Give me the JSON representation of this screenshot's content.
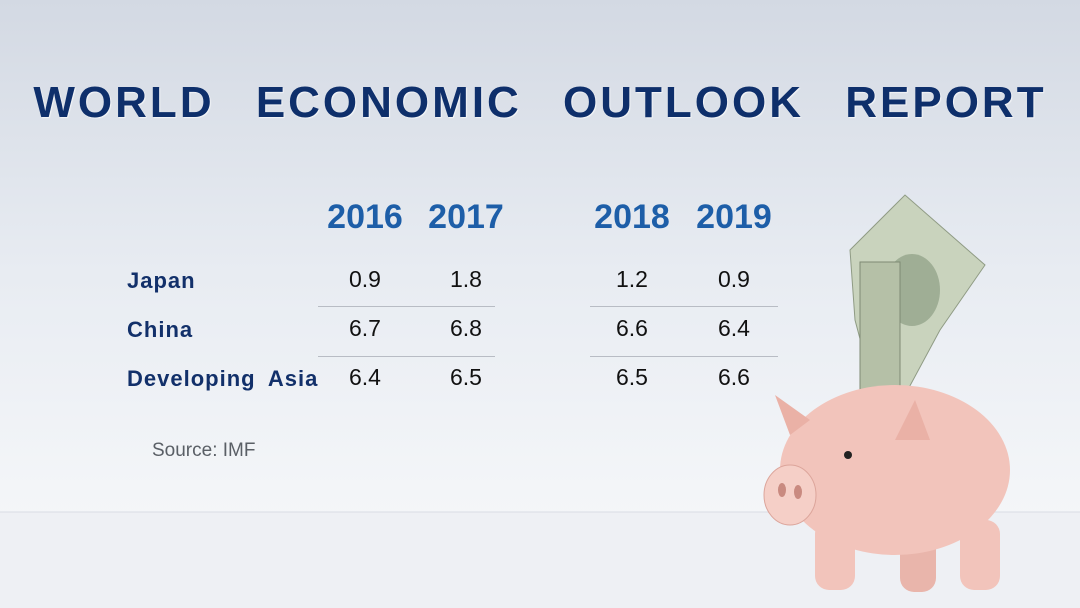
{
  "header": {
    "title": "WORLD ECONOMIC OUTLOOK REPORT"
  },
  "table": {
    "columns": [
      "2016",
      "2017",
      "2018",
      "2019"
    ],
    "rows": [
      {
        "label": "Japan",
        "values": [
          "0.9",
          "1.8",
          "1.2",
          "0.9"
        ]
      },
      {
        "label": "China",
        "values": [
          "6.7",
          "6.8",
          "6.6",
          "6.4"
        ]
      },
      {
        "label": "Developing Asia",
        "values": [
          "6.4",
          "6.5",
          "6.5",
          "6.6"
        ]
      }
    ]
  },
  "footer": {
    "source": "Source: IMF"
  }
}
